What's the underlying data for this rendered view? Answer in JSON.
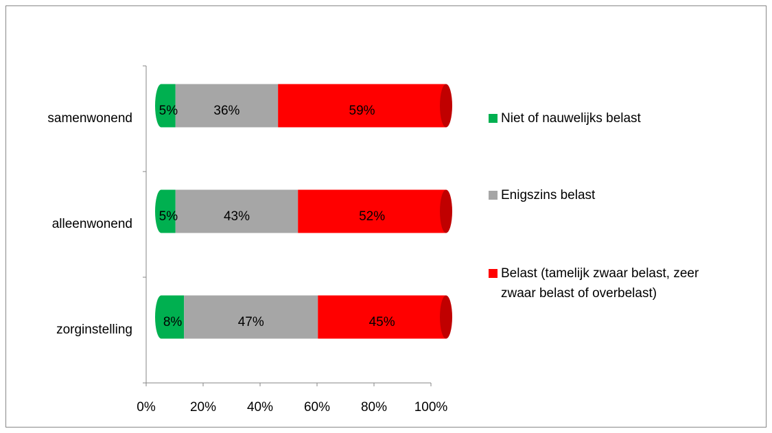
{
  "chart_data": {
    "type": "stacked-bar-horizontal",
    "categories": [
      "samenwonend",
      "alleenwonend",
      "zorginstelling"
    ],
    "series": [
      {
        "name": "Niet of nauwelijks belast",
        "color": "#00b050",
        "values": [
          5,
          5,
          8
        ],
        "value_labels": [
          "5%",
          "5%",
          "8%"
        ]
      },
      {
        "name": "Enigszins belast",
        "color": "#a6a6a6",
        "values": [
          36,
          43,
          47
        ],
        "value_labels": [
          "36%",
          "43%",
          "47%"
        ]
      },
      {
        "name": "Belast (tamelijk zwaar belast, zeer zwaar belast of overbelast)",
        "color": "#ff0000",
        "values": [
          59,
          52,
          45
        ],
        "value_labels": [
          "59%",
          "52%",
          "45%"
        ]
      }
    ],
    "xlim": [
      0,
      100
    ],
    "xticks": [
      {
        "value": 0,
        "label": "0%"
      },
      {
        "value": 20,
        "label": "20%"
      },
      {
        "value": 40,
        "label": "40%"
      },
      {
        "value": 60,
        "label": "60%"
      },
      {
        "value": 80,
        "label": "80%"
      },
      {
        "value": 100,
        "label": "100%"
      }
    ],
    "legend": "right"
  }
}
